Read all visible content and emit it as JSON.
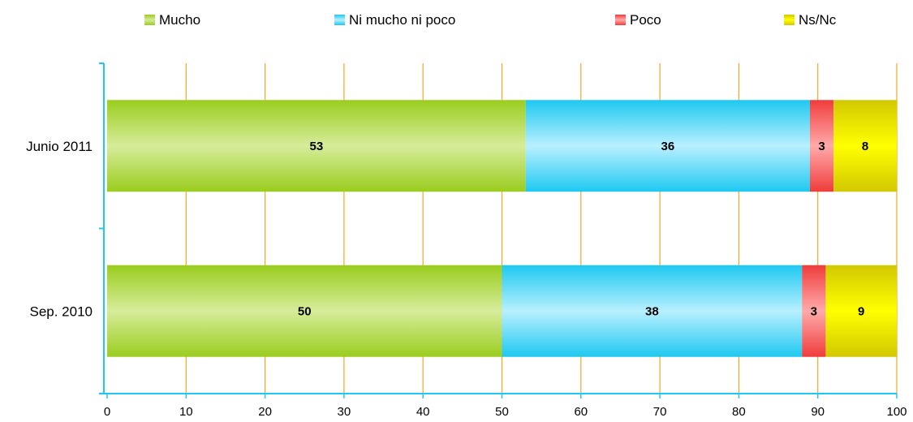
{
  "chart_data": {
    "type": "bar",
    "orientation": "horizontal",
    "stacked": true,
    "categories": [
      "Junio 2011",
      "Sep. 2010"
    ],
    "series": [
      {
        "name": "Mucho",
        "values": [
          53,
          50
        ],
        "color": "#9acd1e",
        "color_light": "#d6ec9a"
      },
      {
        "name": "Ni mucho ni poco",
        "values": [
          36,
          38
        ],
        "color": "#1ec8f0",
        "color_light": "#b8f0ff"
      },
      {
        "name": "Poco",
        "values": [
          3,
          3
        ],
        "color": "#f03c3c",
        "color_light": "#ffaaaa"
      },
      {
        "name": "Ns/Nc",
        "values": [
          8,
          9
        ],
        "color": "#d2c800",
        "color_light": "#ffff00"
      }
    ],
    "xlim": [
      0,
      100
    ],
    "xticks": [
      0,
      10,
      20,
      30,
      40,
      50,
      60,
      70,
      80,
      90,
      100
    ],
    "grid": true,
    "grid_color": "#f5a623",
    "axis_color": "#1ec8f0",
    "legend_position": "top",
    "title": "",
    "xlabel": "",
    "ylabel": ""
  }
}
